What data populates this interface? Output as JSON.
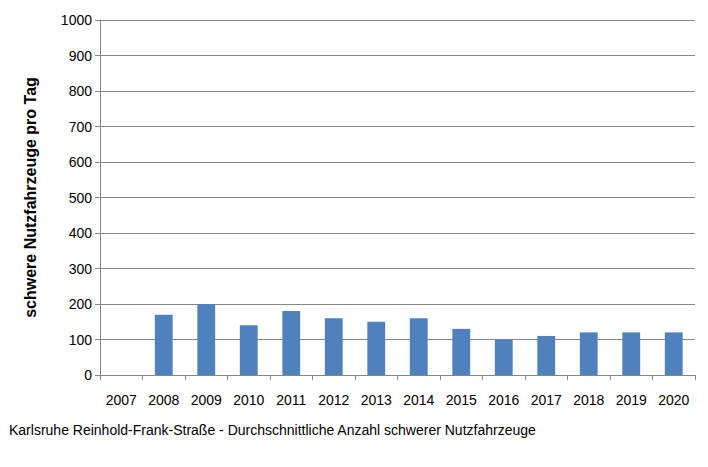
{
  "chart_data": {
    "type": "bar",
    "title": "Karlsruhe Reinhold-Frank-Straße - Durchschnittliche Anzahl schwerer Nutzfahrzeuge",
    "y_label": "schwere Nutzfahrzeuge pro Tag",
    "categories": [
      "2007",
      "2008",
      "2009",
      "2010",
      "2011",
      "2012",
      "2013",
      "2014",
      "2015",
      "2016",
      "2017",
      "2018",
      "2019",
      "2020"
    ],
    "values": [
      null,
      170,
      200,
      140,
      180,
      160,
      150,
      160,
      130,
      100,
      110,
      120,
      120,
      120
    ],
    "color": "#4f81bd",
    "ylim": [
      0,
      1000
    ],
    "yticks": [
      0,
      100,
      200,
      300,
      400,
      500,
      600,
      700,
      800,
      900,
      1000
    ],
    "grid": true
  }
}
